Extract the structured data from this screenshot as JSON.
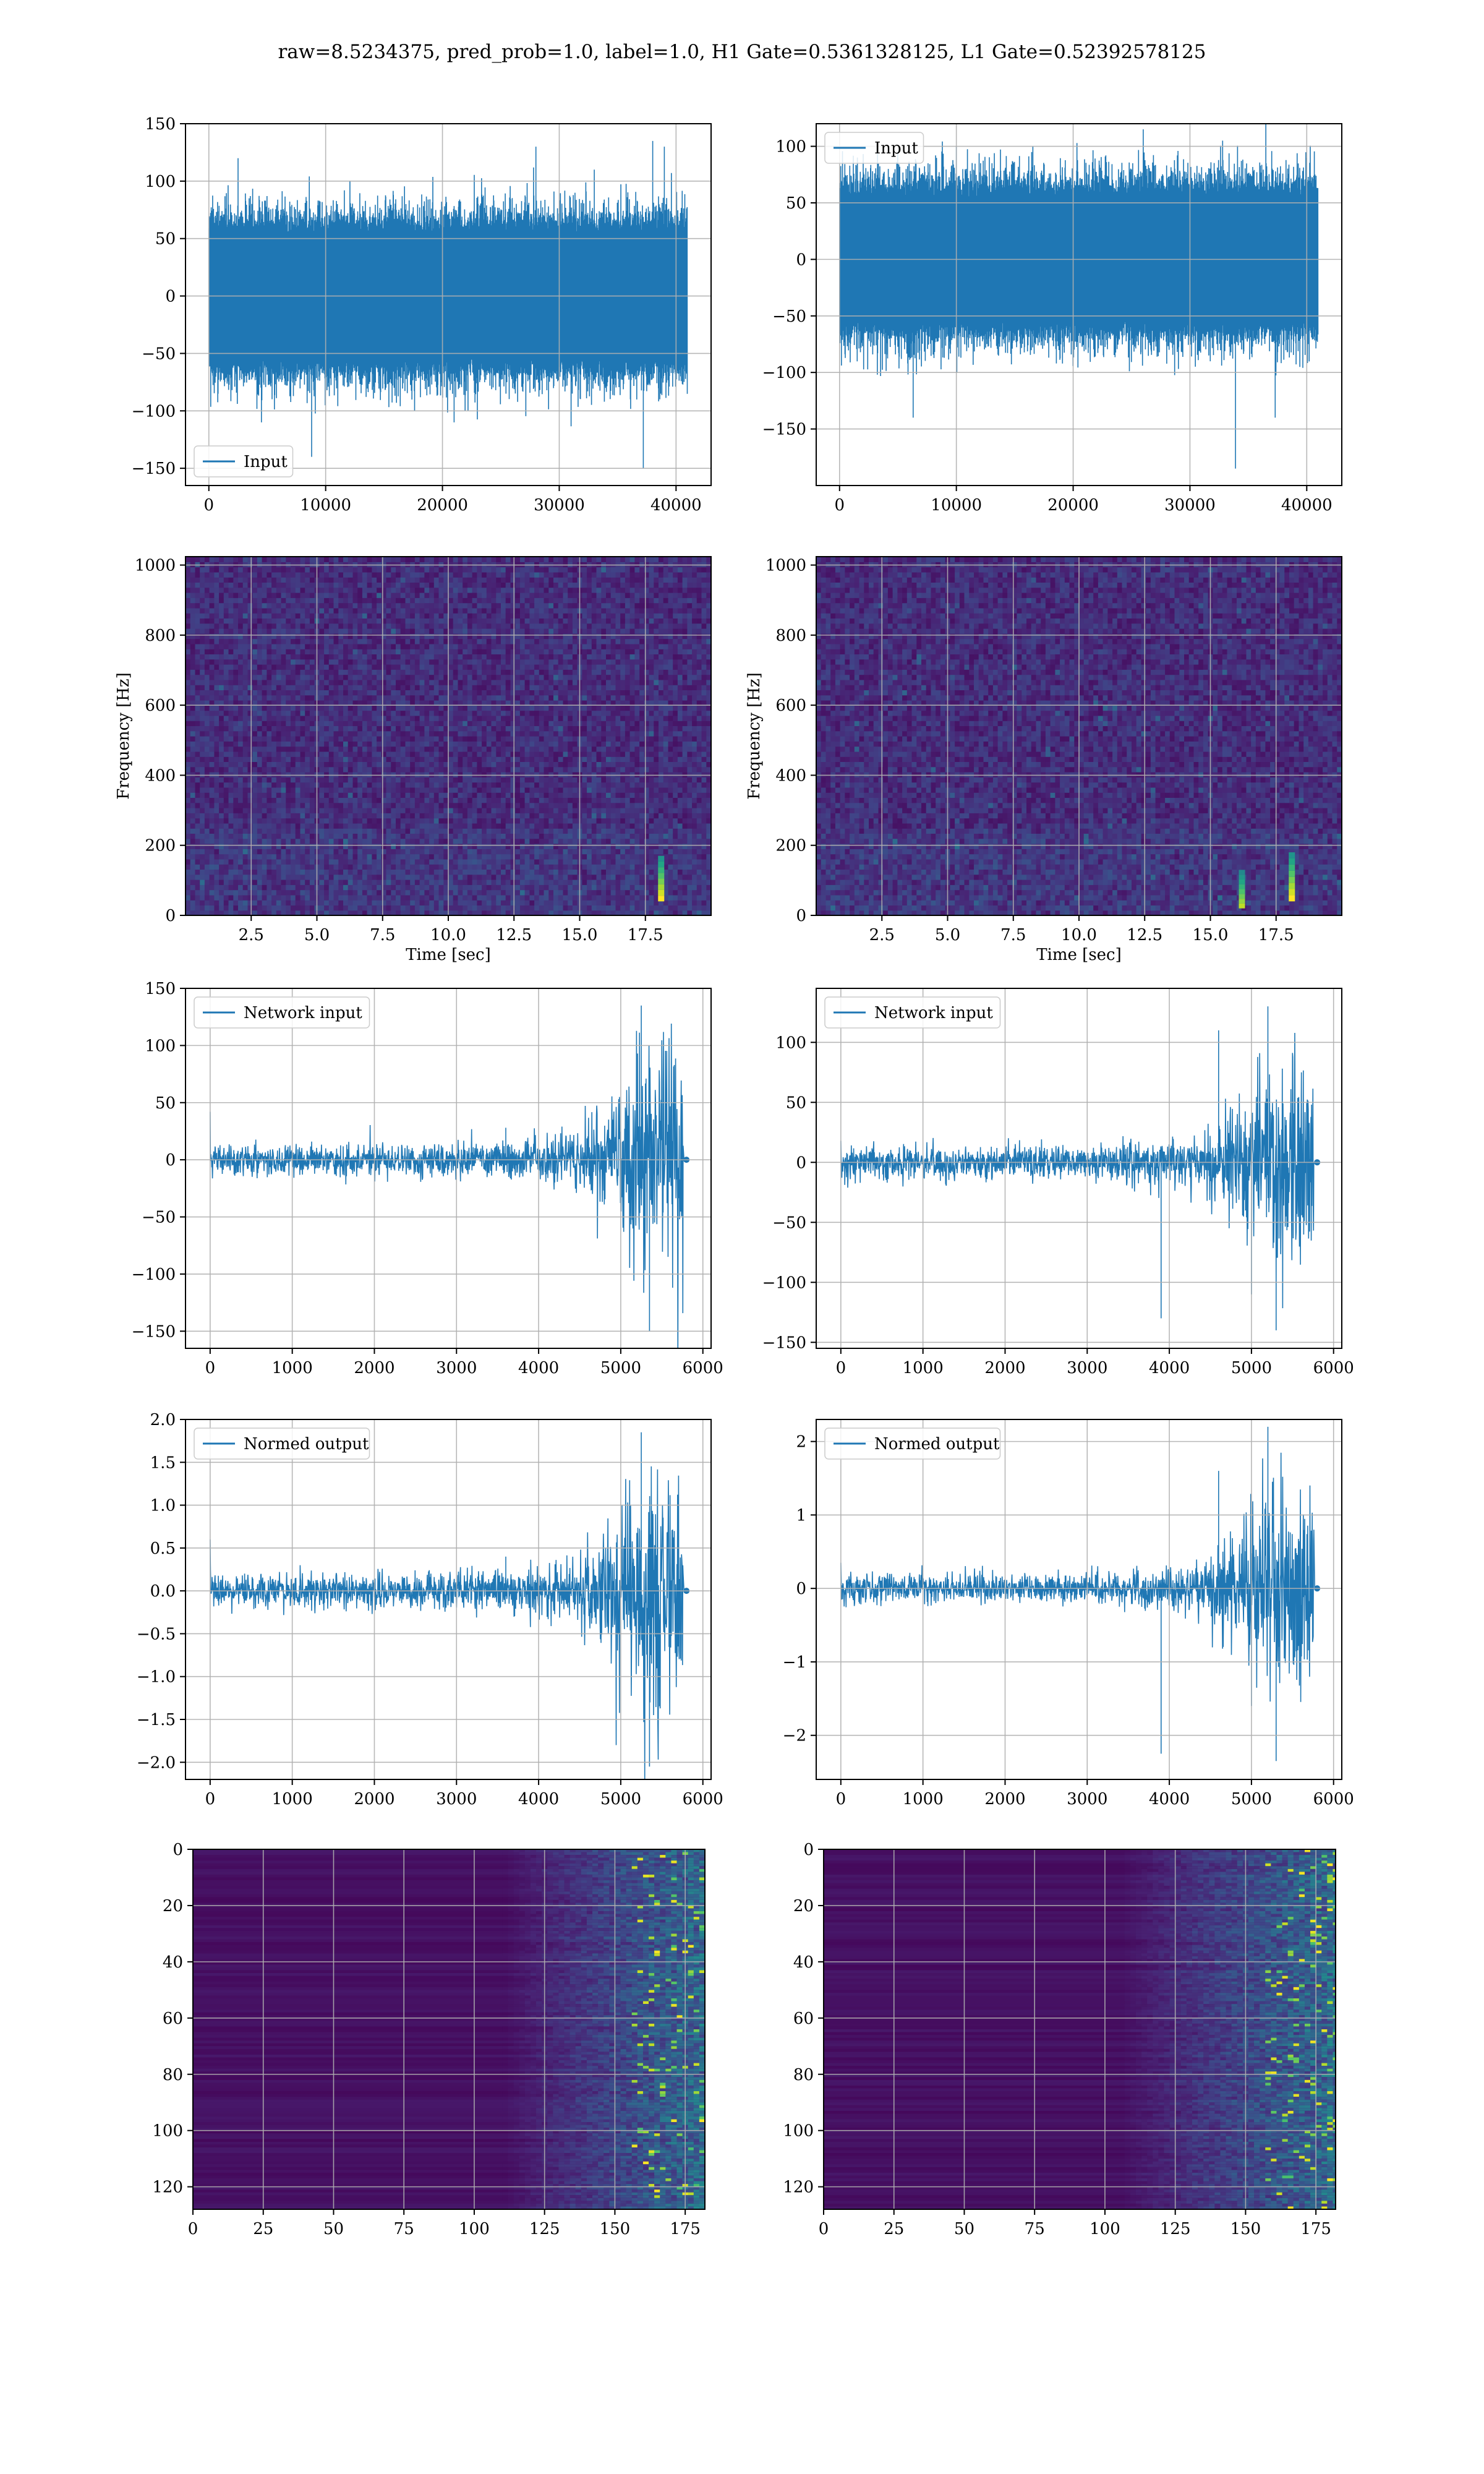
{
  "figure_title": "raw=8.5234375, pred_prob=1.0, label=1.0, H1 Gate=0.5361328125, L1 Gate=0.52392578125",
  "colors": {
    "line": "#1f77b4",
    "grid": "#b0b0b0",
    "viridis_dark": "#440154"
  },
  "chart_data": [
    {
      "id": "h1-input",
      "type": "line",
      "legend": "Input",
      "legend_loc": "lower left",
      "xlim": [
        -2000,
        43000
      ],
      "ylim": [
        -165,
        150
      ],
      "xticks": [
        0,
        10000,
        20000,
        30000,
        40000
      ],
      "xtick_labels": [
        "0",
        "10000",
        "20000",
        "30000",
        "40000"
      ],
      "yticks": [
        -150,
        -100,
        -50,
        0,
        50,
        100,
        150
      ],
      "ytick_labels": [
        "−150",
        "−100",
        "−50",
        "0",
        "50",
        "100",
        "150"
      ],
      "xlabel": "",
      "ylabel": "",
      "grid": true,
      "signal": {
        "n_samples": 40960,
        "core_band": [
          -65,
          65
        ],
        "spikes": [
          [
            2500,
            120
          ],
          [
            4500,
            -110
          ],
          [
            8800,
            -140
          ],
          [
            21000,
            -110
          ],
          [
            28000,
            130
          ],
          [
            33000,
            110
          ],
          [
            37200,
            -150
          ],
          [
            38000,
            135
          ],
          [
            39000,
            130
          ]
        ]
      }
    },
    {
      "id": "l1-input",
      "type": "line",
      "legend": "Input",
      "legend_loc": "upper left",
      "xlim": [
        -2000,
        43000
      ],
      "ylim": [
        -200,
        120
      ],
      "xticks": [
        0,
        10000,
        20000,
        30000,
        40000
      ],
      "xtick_labels": [
        "0",
        "10000",
        "20000",
        "30000",
        "40000"
      ],
      "yticks": [
        -150,
        -100,
        -50,
        0,
        50,
        100
      ],
      "ytick_labels": [
        "−150",
        "−100",
        "−50",
        "0",
        "50",
        "100"
      ],
      "xlabel": "",
      "ylabel": "",
      "grid": true,
      "signal": {
        "n_samples": 40960,
        "core_band": [
          -65,
          65
        ],
        "spikes": [
          [
            6300,
            -140
          ],
          [
            10000,
            100
          ],
          [
            26000,
            115
          ],
          [
            32800,
            105
          ],
          [
            33900,
            -185
          ],
          [
            36500,
            130
          ],
          [
            37300,
            -140
          ]
        ]
      }
    },
    {
      "id": "h1-spectrogram",
      "type": "heatmap",
      "colormap": "viridis",
      "xlim": [
        0,
        20
      ],
      "ylim": [
        0,
        1024
      ],
      "xticks": [
        2.5,
        5.0,
        7.5,
        10.0,
        12.5,
        15.0,
        17.5
      ],
      "xtick_labels": [
        "2.5",
        "5.0",
        "7.5",
        "10.0",
        "12.5",
        "15.0",
        "17.5"
      ],
      "yticks": [
        0,
        200,
        400,
        600,
        800,
        1000
      ],
      "ytick_labels": [
        "0",
        "200",
        "400",
        "600",
        "800",
        "1000"
      ],
      "xlabel": "Time [sec]",
      "ylabel": "Frequency [Hz]",
      "grid": true,
      "highlights": [
        [
          18.1,
          40,
          170,
          1.0
        ]
      ]
    },
    {
      "id": "l1-spectrogram",
      "type": "heatmap",
      "colormap": "viridis",
      "xlim": [
        0,
        20
      ],
      "ylim": [
        0,
        1024
      ],
      "xticks": [
        2.5,
        5.0,
        7.5,
        10.0,
        12.5,
        15.0,
        17.5
      ],
      "xtick_labels": [
        "2.5",
        "5.0",
        "7.5",
        "10.0",
        "12.5",
        "15.0",
        "17.5"
      ],
      "yticks": [
        0,
        200,
        400,
        600,
        800,
        1000
      ],
      "ytick_labels": [
        "0",
        "200",
        "400",
        "600",
        "800",
        "1000"
      ],
      "xlabel": "Time [sec]",
      "ylabel": "Frequency [Hz]",
      "grid": true,
      "highlights": [
        [
          16.2,
          20,
          130,
          0.9
        ],
        [
          18.1,
          40,
          180,
          1.0
        ]
      ]
    },
    {
      "id": "h1-network-input",
      "type": "line",
      "legend": "Network input",
      "legend_loc": "upper left",
      "xlim": [
        -300,
        6100
      ],
      "ylim": [
        -165,
        150
      ],
      "xticks": [
        0,
        1000,
        2000,
        3000,
        4000,
        5000,
        6000
      ],
      "xtick_labels": [
        "0",
        "1000",
        "2000",
        "3000",
        "4000",
        "5000",
        "6000"
      ],
      "yticks": [
        -150,
        -100,
        -50,
        0,
        50,
        100,
        150
      ],
      "ytick_labels": [
        "−150",
        "−100",
        "−50",
        "0",
        "50",
        "100",
        "150"
      ],
      "xlabel": "",
      "ylabel": "",
      "grid": true,
      "signal": {
        "x_end": 5820,
        "signal_end": 5760,
        "base_amp": 14,
        "burst_start": 4400,
        "burst_peak": 5300,
        "burst_amp": 75,
        "start_spike": 42,
        "spikes": [
          [
            3600,
            28
          ],
          [
            5250,
            135
          ],
          [
            5350,
            -150
          ]
        ]
      }
    },
    {
      "id": "l1-network-input",
      "type": "line",
      "legend": "Network input",
      "legend_loc": "upper left",
      "xlim": [
        -300,
        6100
      ],
      "ylim": [
        -155,
        145
      ],
      "xticks": [
        0,
        1000,
        2000,
        3000,
        4000,
        5000,
        6000
      ],
      "xtick_labels": [
        "0",
        "1000",
        "2000",
        "3000",
        "4000",
        "5000",
        "6000"
      ],
      "yticks": [
        -150,
        -100,
        -50,
        0,
        50,
        100
      ],
      "ytick_labels": [
        "−150",
        "−100",
        "−50",
        "0",
        "50",
        "100"
      ],
      "xlabel": "",
      "ylabel": "",
      "grid": true,
      "signal": {
        "x_end": 5820,
        "signal_end": 5760,
        "base_amp": 14,
        "burst_start": 4300,
        "burst_peak": 5200,
        "burst_amp": 62,
        "start_spike": 18,
        "spikes": [
          [
            3900,
            -130
          ],
          [
            4600,
            110
          ],
          [
            5000,
            -110
          ],
          [
            5200,
            130
          ],
          [
            5300,
            -140
          ]
        ]
      }
    },
    {
      "id": "h1-normed-output",
      "type": "line",
      "legend": "Normed output",
      "legend_loc": "upper left",
      "xlim": [
        -300,
        6100
      ],
      "ylim": [
        -2.2,
        2.0
      ],
      "xticks": [
        0,
        1000,
        2000,
        3000,
        4000,
        5000,
        6000
      ],
      "xtick_labels": [
        "0",
        "1000",
        "2000",
        "3000",
        "4000",
        "5000",
        "6000"
      ],
      "yticks": [
        -2.0,
        -1.5,
        -1.0,
        -0.5,
        0.0,
        0.5,
        1.0,
        1.5,
        2.0
      ],
      "ytick_labels": [
        "−2.0",
        "−1.5",
        "−1.0",
        "−0.5",
        "0.0",
        "0.5",
        "1.0",
        "1.5",
        "2.0"
      ],
      "xlabel": "",
      "ylabel": "",
      "grid": true,
      "signal": {
        "x_end": 5820,
        "signal_end": 5760,
        "base_amp": 0.2,
        "burst_start": 4400,
        "burst_peak": 5300,
        "burst_amp": 1.0,
        "start_spike": 0.6,
        "spikes": [
          [
            3600,
            0.4
          ],
          [
            5250,
            1.85
          ],
          [
            5350,
            -2.05
          ]
        ]
      }
    },
    {
      "id": "l1-normed-output",
      "type": "line",
      "legend": "Normed output",
      "legend_loc": "upper left",
      "xlim": [
        -300,
        6100
      ],
      "ylim": [
        -2.6,
        2.3
      ],
      "xticks": [
        0,
        1000,
        2000,
        3000,
        4000,
        5000,
        6000
      ],
      "xtick_labels": [
        "0",
        "1000",
        "2000",
        "3000",
        "4000",
        "5000",
        "6000"
      ],
      "yticks": [
        -2,
        -1,
        0,
        1,
        2
      ],
      "ytick_labels": [
        "−2",
        "−1",
        "0",
        "1",
        "2"
      ],
      "xlabel": "",
      "ylabel": "",
      "grid": true,
      "signal": {
        "x_end": 5820,
        "signal_end": 5760,
        "base_amp": 0.2,
        "burst_start": 4300,
        "burst_peak": 5200,
        "burst_amp": 0.95,
        "start_spike": 0.35,
        "spikes": [
          [
            3900,
            -2.25
          ],
          [
            4600,
            1.6
          ],
          [
            5000,
            -1.6
          ],
          [
            5200,
            2.2
          ],
          [
            5300,
            -2.35
          ]
        ]
      }
    },
    {
      "id": "h1-feature-map",
      "type": "heatmap",
      "colormap": "viridis",
      "xlim": [
        0,
        182
      ],
      "ylim": [
        128,
        0
      ],
      "xticks": [
        0,
        25,
        50,
        75,
        100,
        125,
        150,
        175
      ],
      "xtick_labels": [
        "0",
        "25",
        "50",
        "75",
        "100",
        "125",
        "150",
        "175"
      ],
      "yticks": [
        0,
        20,
        40,
        60,
        80,
        100,
        120
      ],
      "ytick_labels": [
        "0",
        "20",
        "40",
        "60",
        "80",
        "100",
        "120"
      ],
      "xlabel": "",
      "ylabel": "",
      "grid": true,
      "activity_onset": 125
    },
    {
      "id": "l1-feature-map",
      "type": "heatmap",
      "colormap": "viridis",
      "xlim": [
        0,
        182
      ],
      "ylim": [
        128,
        0
      ],
      "xticks": [
        0,
        25,
        50,
        75,
        100,
        125,
        150,
        175
      ],
      "xtick_labels": [
        "0",
        "25",
        "50",
        "75",
        "100",
        "125",
        "150",
        "175"
      ],
      "yticks": [
        0,
        20,
        40,
        60,
        80,
        100,
        120
      ],
      "ytick_labels": [
        "0",
        "20",
        "40",
        "60",
        "80",
        "100",
        "120"
      ],
      "xlabel": "",
      "ylabel": "",
      "grid": true,
      "activity_onset": 120
    }
  ]
}
